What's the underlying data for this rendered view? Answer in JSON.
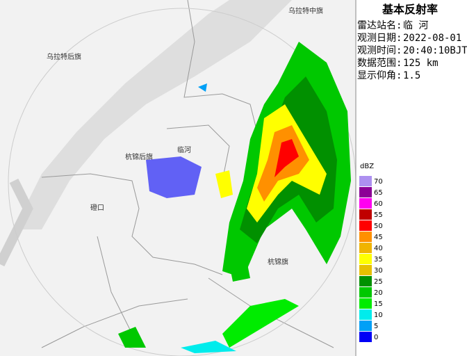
{
  "header": {
    "title": "基本反射率"
  },
  "info": [
    {
      "label": "雷达站名:",
      "value": "临 河"
    },
    {
      "label": "观测日期:",
      "value": "2022-08-01"
    },
    {
      "label": "观测时间:",
      "value": "20:40:10BJT"
    },
    {
      "label": "数据范围:",
      "value": "125 km"
    },
    {
      "label": "显示仰角:",
      "value": "1.5"
    }
  ],
  "legend": {
    "unit": "dBZ",
    "levels": [
      {
        "value": 70,
        "color": "#ad90f0"
      },
      {
        "value": 65,
        "color": "#8c0096"
      },
      {
        "value": 60,
        "color": "#ff00f0"
      },
      {
        "value": 55,
        "color": "#c00000"
      },
      {
        "value": 50,
        "color": "#ff0000"
      },
      {
        "value": 45,
        "color": "#ff9000"
      },
      {
        "value": 40,
        "color": "#f0b400"
      },
      {
        "value": 35,
        "color": "#ffff00"
      },
      {
        "value": 30,
        "color": "#e7c000"
      },
      {
        "value": 25,
        "color": "#019000"
      },
      {
        "value": 20,
        "color": "#00c800"
      },
      {
        "value": 15,
        "color": "#00ec00"
      },
      {
        "value": 10,
        "color": "#00ecec"
      },
      {
        "value": 5,
        "color": "#01a0f6"
      },
      {
        "value": 0,
        "color": "#0000f6"
      }
    ]
  },
  "map": {
    "places": [
      "乌拉特中旗",
      "乌拉特后旗",
      "杭锦后旗",
      "临河",
      "磴口",
      "杭锦旗"
    ]
  }
}
